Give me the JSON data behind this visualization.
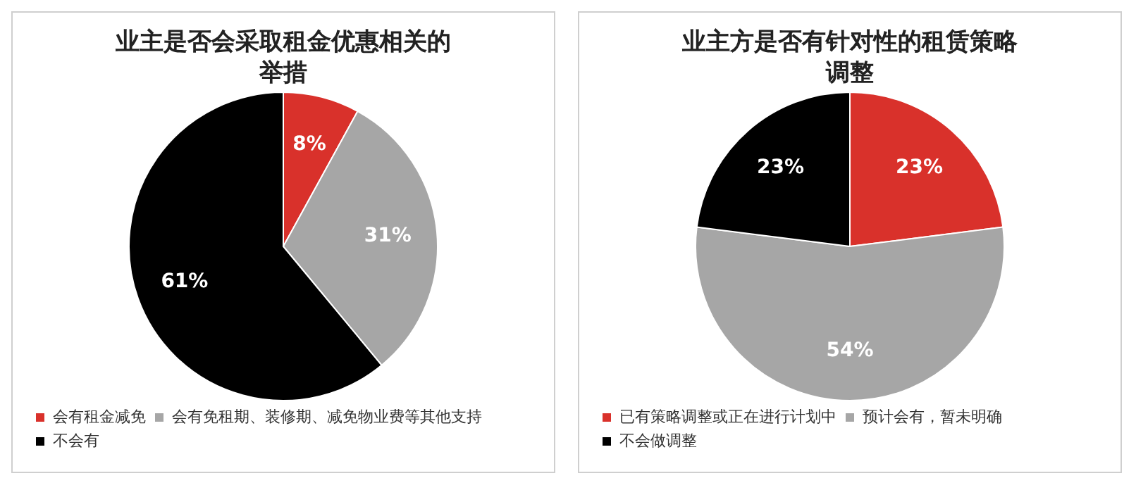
{
  "chart_data": [
    {
      "type": "pie",
      "title": "业主是否会采取租金优惠相关的举措",
      "categories": [
        "会有租金减免",
        "会有免租期、装修期、减免物业费等其他支持",
        "不会有"
      ],
      "values": [
        8,
        31,
        61
      ],
      "colors": [
        "#d9312b",
        "#a6a6a6",
        "#000000"
      ],
      "value_labels": [
        "8%",
        "31%",
        "61%"
      ],
      "legend": "bottom left"
    },
    {
      "type": "pie",
      "title": "业主方是否有针对性的租赁策略调整",
      "categories": [
        "已有策略调整或正在进行计划中",
        "预计会有，暂未明确",
        "不会做调整"
      ],
      "values": [
        23,
        54,
        23
      ],
      "colors": [
        "#d9312b",
        "#a6a6a6",
        "#000000"
      ],
      "value_labels": [
        "23%",
        "54%",
        "23%"
      ],
      "legend": "bottom left"
    }
  ]
}
